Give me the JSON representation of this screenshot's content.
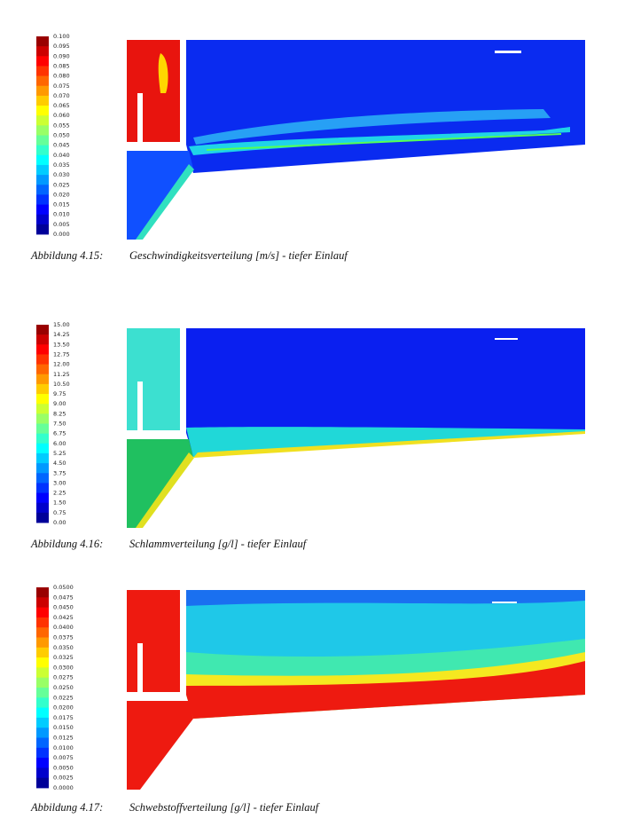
{
  "figures": [
    {
      "colorbar": [
        "0.100",
        "0.095",
        "0.090",
        "0.085",
        "0.080",
        "0.075",
        "0.070",
        "0.065",
        "0.060",
        "0.055",
        "0.050",
        "0.045",
        "0.040",
        "0.035",
        "0.030",
        "0.025",
        "0.020",
        "0.015",
        "0.010",
        "0.005",
        "0.000"
      ],
      "caption": {
        "label": "Abbildung 4.15:",
        "text": "Geschwindigkeitsverteilung [m/s] - tiefer Einlauf"
      }
    },
    {
      "colorbar": [
        "15.00",
        "14.25",
        "13.50",
        "12.75",
        "12.00",
        "11.25",
        "10.50",
        "9.75",
        "9.00",
        "8.25",
        "7.50",
        "6.75",
        "6.00",
        "5.25",
        "4.50",
        "3.75",
        "3.00",
        "2.25",
        "1.50",
        "0.75",
        "0.00"
      ],
      "caption": {
        "label": "Abbildung 4.16:",
        "text": "Schlammverteilung [g/l] - tiefer Einlauf"
      }
    },
    {
      "colorbar": [
        "0.0500",
        "0.0475",
        "0.0450",
        "0.0425",
        "0.0400",
        "0.0375",
        "0.0350",
        "0.0325",
        "0.0300",
        "0.0275",
        "0.0250",
        "0.0225",
        "0.0200",
        "0.0175",
        "0.0150",
        "0.0125",
        "0.0100",
        "0.0075",
        "0.0050",
        "0.0025",
        "0.0000"
      ],
      "caption": {
        "label": "Abbildung 4.17:",
        "text": "Schwebstoffverteilung [g/l] - tiefer Einlauf"
      }
    }
  ]
}
